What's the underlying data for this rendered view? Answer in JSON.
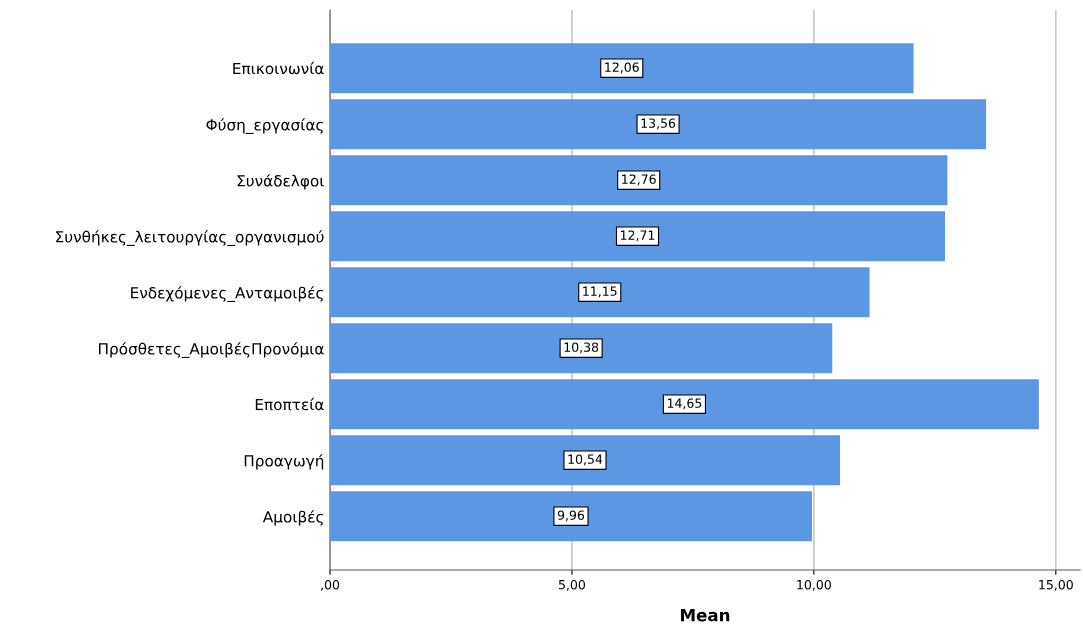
{
  "chart_data": {
    "type": "bar",
    "orientation": "horizontal",
    "xlabel": "Mean",
    "categories": [
      "Επικοινωνία",
      "Φύση_εργασίας",
      "Συνάδελφοι",
      "Συνθήκες_λειτουργίας_οργανισμού",
      "Ενδεχόμενες_Ανταμοιβές",
      "Πρόσθετες_ΑμοιβέςΠρονόμια",
      "Εποπτεία",
      "Προαγωγή",
      "Αμοιβές"
    ],
    "values": [
      12.06,
      13.56,
      12.76,
      12.71,
      11.15,
      10.38,
      14.65,
      10.54,
      9.96
    ],
    "value_labels": [
      "12,06",
      "13,56",
      "12,76",
      "12,71",
      "11,15",
      "10,38",
      "14,65",
      "10,54",
      "9,96"
    ],
    "color": "#5b97e3",
    "xlim": [
      0,
      15.5
    ],
    "xticks": [
      {
        "value": 0,
        "label": ",00"
      },
      {
        "value": 5,
        "label": "5,00"
      },
      {
        "value": 10,
        "label": "10,00"
      },
      {
        "value": 15,
        "label": "15,00"
      }
    ],
    "grid": "x"
  }
}
